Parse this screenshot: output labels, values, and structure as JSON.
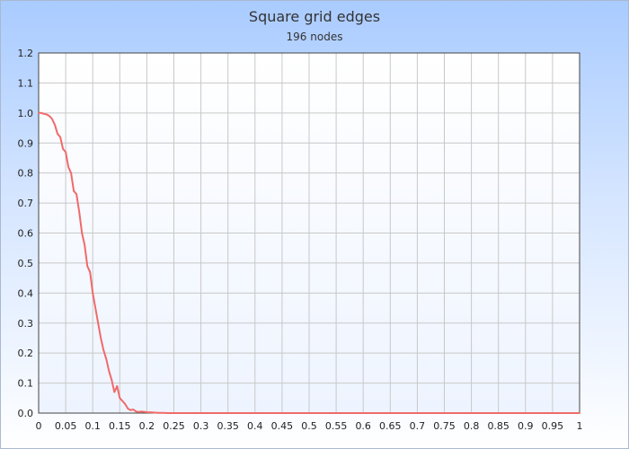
{
  "chart_data": {
    "type": "line",
    "title": "Square grid edges",
    "subtitle": "196 nodes",
    "xlabel": "",
    "ylabel": "",
    "xlim": [
      0,
      1
    ],
    "ylim": [
      0,
      1.2
    ],
    "x_ticks": [
      "0",
      "0.05",
      "0.1",
      "0.15",
      "0.2",
      "0.25",
      "0.3",
      "0.35",
      "0.4",
      "0.45",
      "0.5",
      "0.55",
      "0.6",
      "0.65",
      "0.7",
      "0.75",
      "0.8",
      "0.85",
      "0.9",
      "0.95",
      "1"
    ],
    "y_ticks": [
      "0.0",
      "0.1",
      "0.2",
      "0.3",
      "0.4",
      "0.5",
      "0.6",
      "0.7",
      "0.8",
      "0.9",
      "1.0",
      "1.1",
      "1.2"
    ],
    "grid": true,
    "series": [
      {
        "color": "#f06a6a",
        "x": [
          0,
          0.005,
          0.01,
          0.015,
          0.02,
          0.025,
          0.03,
          0.035,
          0.04,
          0.045,
          0.05,
          0.055,
          0.06,
          0.065,
          0.07,
          0.075,
          0.08,
          0.085,
          0.09,
          0.095,
          0.1,
          0.105,
          0.11,
          0.115,
          0.12,
          0.125,
          0.13,
          0.135,
          0.14,
          0.145,
          0.15,
          0.155,
          0.16,
          0.165,
          0.17,
          0.175,
          0.18,
          0.185,
          0.19,
          0.2,
          0.21,
          0.22,
          0.23,
          0.24,
          0.25,
          0.3,
          0.4,
          0.5,
          0.6,
          0.7,
          0.8,
          0.9,
          1.0
        ],
        "y": [
          1.0,
          1.0,
          0.997,
          0.995,
          0.99,
          0.98,
          0.96,
          0.93,
          0.92,
          0.88,
          0.87,
          0.82,
          0.8,
          0.74,
          0.73,
          0.67,
          0.6,
          0.56,
          0.49,
          0.47,
          0.4,
          0.35,
          0.3,
          0.25,
          0.21,
          0.18,
          0.14,
          0.11,
          0.07,
          0.09,
          0.05,
          0.04,
          0.03,
          0.015,
          0.01,
          0.012,
          0.005,
          0.004,
          0.005,
          0.003,
          0.002,
          0.001,
          0.001,
          0.0,
          0.0,
          0.0,
          0.0,
          0.0,
          0.0,
          0.0,
          0.0,
          0.0,
          0.0
        ]
      }
    ]
  }
}
